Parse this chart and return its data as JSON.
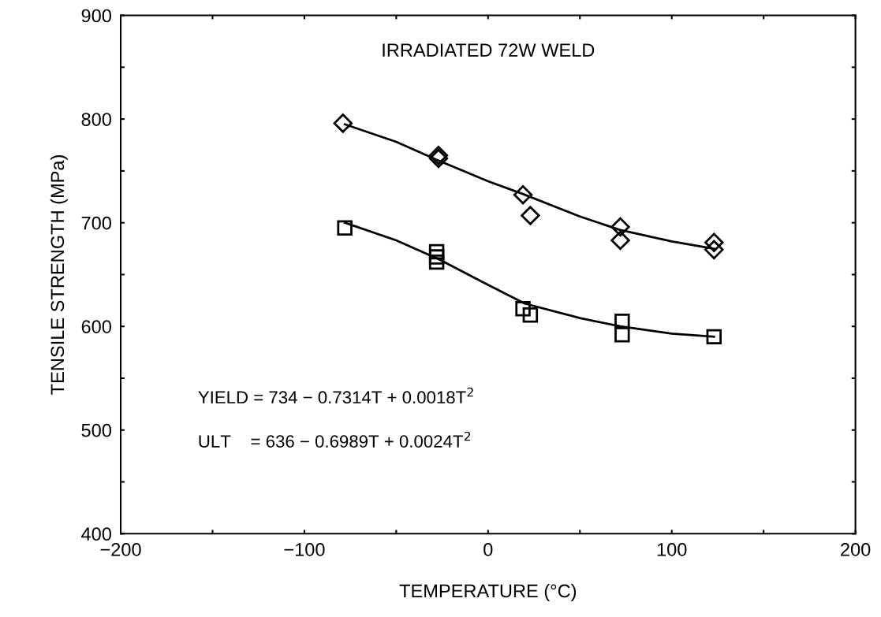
{
  "chart_data": {
    "type": "scatter",
    "title": "IRRADIATED 72W WELD",
    "xlabel": "TEMPERATURE (°C)",
    "ylabel": "TENSILE STRENGTH (MPa)",
    "xlim": [
      -200,
      200
    ],
    "ylim": [
      400,
      900
    ],
    "xticks": [
      -200,
      {
        "value": -150,
        "label": null
      },
      -100,
      {
        "value": -50,
        "label": null
      },
      0,
      {
        "value": 50,
        "label": null
      },
      100,
      {
        "value": 150,
        "label": null
      },
      200
    ],
    "yticks": [
      400,
      {
        "value": 450,
        "label": null
      },
      500,
      {
        "value": 550,
        "label": null
      },
      600,
      {
        "value": 650,
        "label": null
      },
      700,
      {
        "value": 750,
        "label": null
      },
      800,
      {
        "value": 850,
        "label": null
      },
      900
    ],
    "grid": false,
    "legend": false,
    "annotations": [
      "YIELD = 734 − 0.7314T + 0.0018T$^{2}$",
      "ULT    = 636 − 0.6989T + 0.0024T$^{2}$"
    ],
    "series": [
      {
        "marker": "diamond",
        "color": "#000000",
        "x": [
          -79,
          -27,
          -27,
          19,
          23,
          72,
          72,
          123,
          123
        ],
        "values": [
          796,
          765,
          762,
          727,
          707,
          696,
          683,
          681,
          674
        ]
      },
      {
        "marker": "square",
        "color": "#000000",
        "x": [
          -78,
          -28,
          -28,
          -28,
          19,
          23,
          73,
          73,
          123
        ],
        "values": [
          695,
          672,
          667,
          662,
          617,
          611,
          605,
          592,
          590
        ]
      },
      {
        "type": "line",
        "marker": "none",
        "line_style": "solid",
        "color": "#000000",
        "x": [
          -78,
          -50,
          -27,
          0,
          20,
          50,
          72,
          100,
          123
        ],
        "values": [
          795,
          778,
          760,
          740,
          727,
          706,
          693,
          682,
          675
        ]
      },
      {
        "type": "line",
        "marker": "none",
        "line_style": "solid",
        "color": "#000000",
        "x": [
          -78,
          -50,
          -27,
          0,
          20,
          50,
          72,
          100,
          123
        ],
        "values": [
          700,
          683,
          665,
          640,
          622,
          608,
          600,
          593,
          590
        ]
      }
    ]
  }
}
